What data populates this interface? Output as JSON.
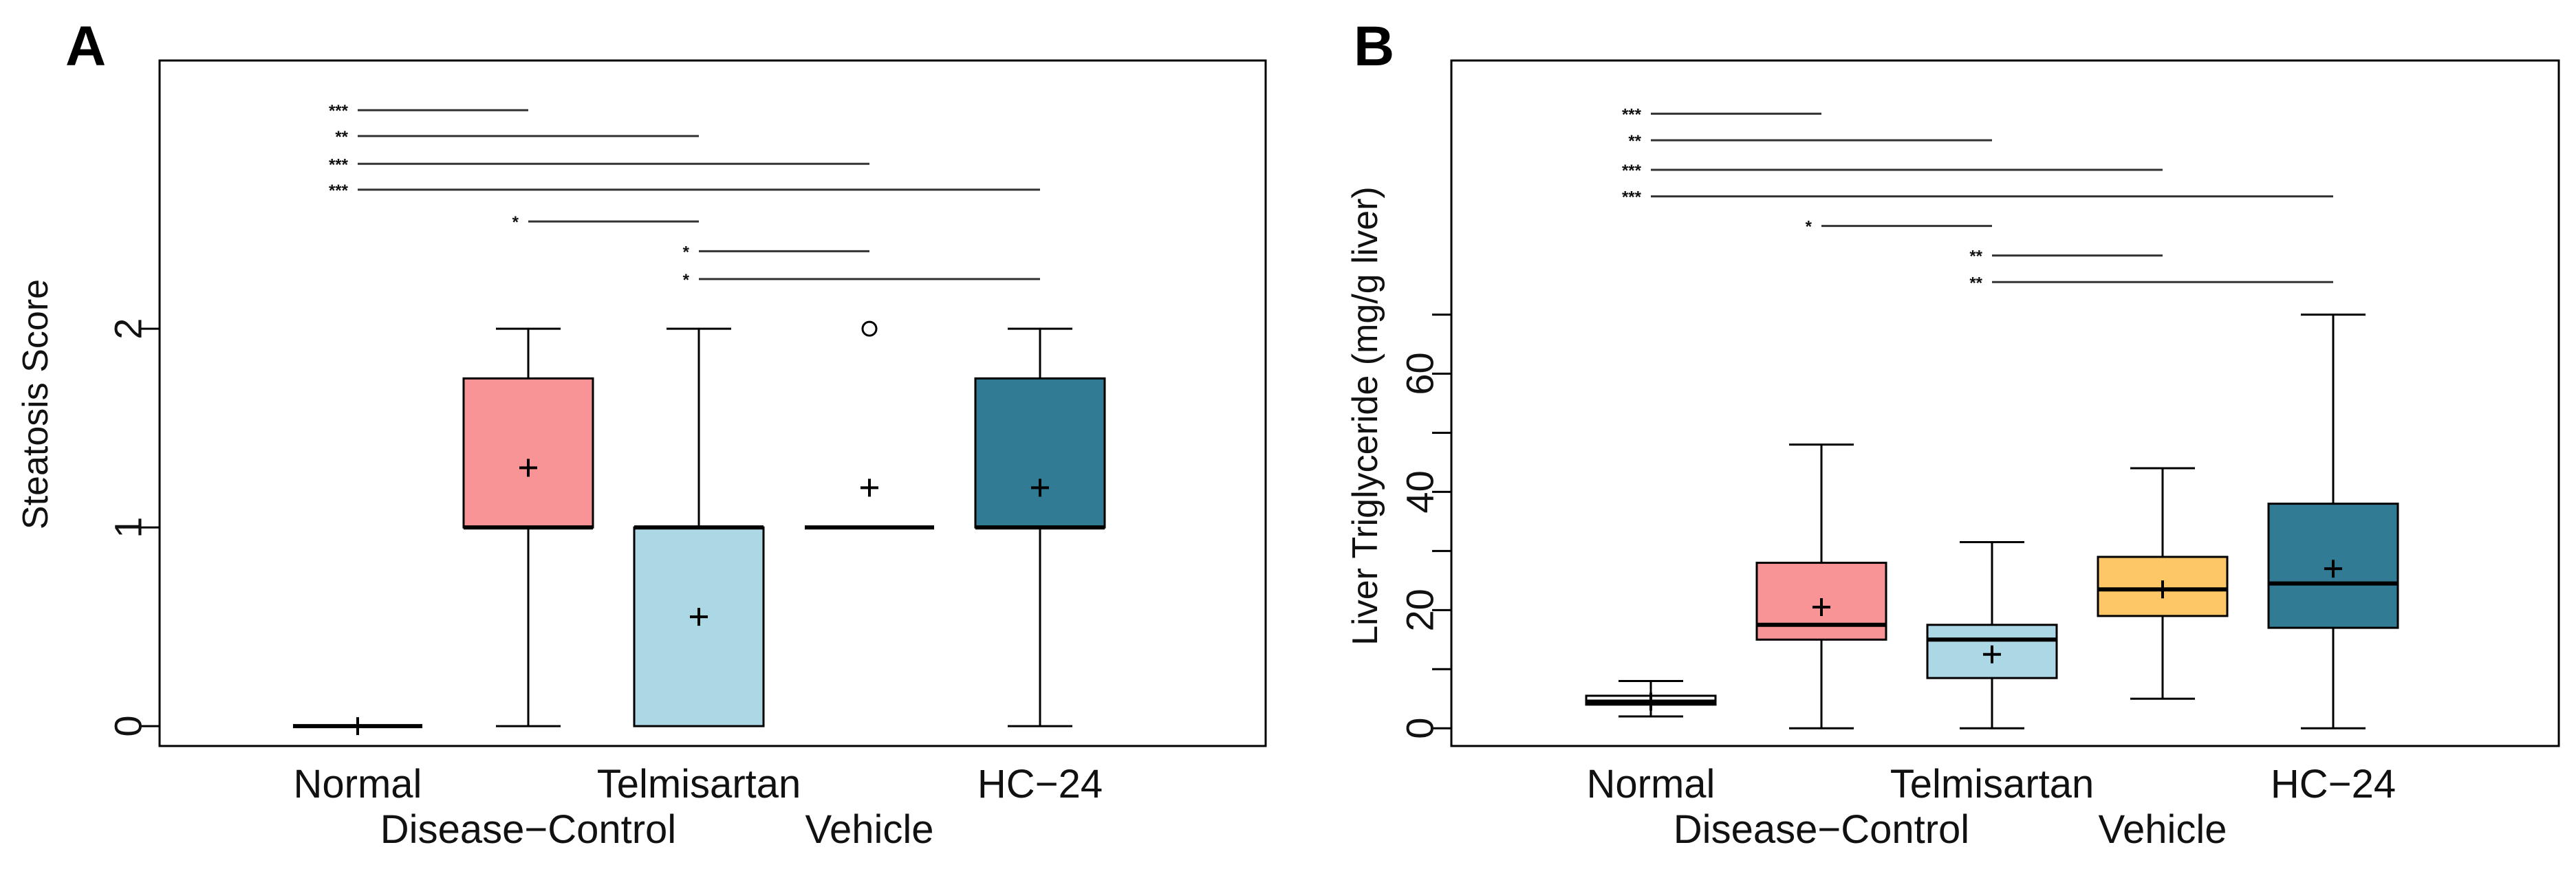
{
  "chart_data": [
    {
      "panel": "A",
      "type": "boxplot",
      "ylabel": "Steatosis Score",
      "ylim": [
        -0.1,
        3.35
      ],
      "yticks": [
        0,
        1,
        2
      ],
      "minor_ticks": [],
      "categories": [
        "Normal",
        "Disease−Control",
        "Telmisartan",
        "Vehicle",
        "HC−24"
      ],
      "colors": [
        "#ffffff",
        "#f99496",
        "#acd8e6",
        "#ffffff",
        "#317b94"
      ],
      "boxes": [
        {
          "min": 0,
          "q1": 0,
          "median": 0,
          "q3": 0,
          "max": 0,
          "mean": 0,
          "outliers": []
        },
        {
          "min": 0,
          "q1": 1,
          "median": 1,
          "q3": 1.75,
          "max": 2,
          "mean": 1.3,
          "outliers": []
        },
        {
          "min": 0,
          "q1": 0,
          "median": 1,
          "q3": 1,
          "max": 2,
          "mean": 0.55,
          "outliers": []
        },
        {
          "min": 1,
          "q1": 1,
          "median": 1,
          "q3": 1,
          "max": 1,
          "mean": 1.2,
          "outliers": [
            2
          ]
        },
        {
          "min": 0,
          "q1": 1,
          "median": 1,
          "q3": 1.75,
          "max": 2,
          "mean": 1.2,
          "outliers": []
        }
      ],
      "significance": [
        {
          "from": 1,
          "to": 2,
          "label": "***",
          "y": 3.1
        },
        {
          "from": 1,
          "to": 3,
          "label": "**",
          "y": 2.97
        },
        {
          "from": 1,
          "to": 4,
          "label": "***",
          "y": 2.83
        },
        {
          "from": 1,
          "to": 5,
          "label": "***",
          "y": 2.7
        },
        {
          "from": 2,
          "to": 3,
          "label": "*",
          "y": 2.54
        },
        {
          "from": 3,
          "to": 4,
          "label": "*",
          "y": 2.39
        },
        {
          "from": 3,
          "to": 5,
          "label": "*",
          "y": 2.25
        }
      ]
    },
    {
      "panel": "B",
      "type": "boxplot",
      "ylabel": "Liver Triglyceride (mg/g liver)",
      "ylim": [
        -3,
        113
      ],
      "yticks": [
        0,
        20,
        40,
        60
      ],
      "minor_ticks": [
        10,
        30,
        50,
        70
      ],
      "categories": [
        "Normal",
        "Disease−Control",
        "Telmisartan",
        "Vehicle",
        "HC−24"
      ],
      "colors": [
        "#ffffff",
        "#f99496",
        "#acd8e6",
        "#fdc767",
        "#317b94"
      ],
      "boxes": [
        {
          "min": 2,
          "q1": 4,
          "median": 4.5,
          "q3": 5.5,
          "max": 8,
          "mean": 4.5,
          "outliers": []
        },
        {
          "min": 0,
          "q1": 15,
          "median": 17.5,
          "q3": 28,
          "max": 48,
          "mean": 20.5,
          "outliers": []
        },
        {
          "min": 0,
          "q1": 8.5,
          "median": 15,
          "q3": 17.5,
          "max": 31.5,
          "mean": 12.5,
          "outliers": []
        },
        {
          "min": 5,
          "q1": 19,
          "median": 23.5,
          "q3": 29,
          "max": 44,
          "mean": 23.5,
          "outliers": []
        },
        {
          "min": 0,
          "q1": 17,
          "median": 24.5,
          "q3": 38,
          "max": 70,
          "mean": 27,
          "outliers": []
        }
      ],
      "significance": [
        {
          "from": 1,
          "to": 2,
          "label": "***",
          "y": 104
        },
        {
          "from": 1,
          "to": 3,
          "label": "**",
          "y": 99.5
        },
        {
          "from": 1,
          "to": 4,
          "label": "***",
          "y": 94.5
        },
        {
          "from": 1,
          "to": 5,
          "label": "***",
          "y": 90
        },
        {
          "from": 2,
          "to": 3,
          "label": "*",
          "y": 85
        },
        {
          "from": 3,
          "to": 4,
          "label": "**",
          "y": 80
        },
        {
          "from": 3,
          "to": 5,
          "label": "**",
          "y": 75.5
        }
      ]
    }
  ]
}
